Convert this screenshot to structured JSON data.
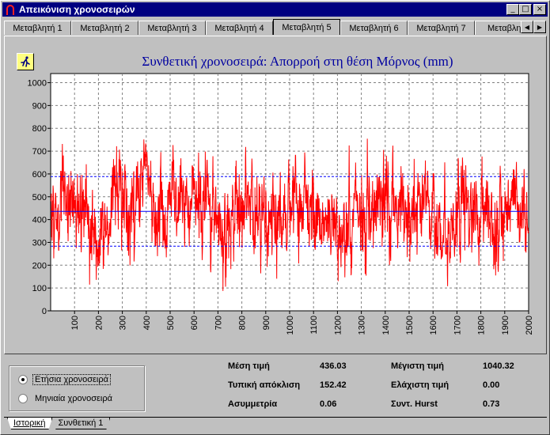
{
  "window": {
    "title": "Απεικόνιση χρονοσειρών",
    "buttons": {
      "minimize": "_",
      "maximize": "□",
      "close": "×"
    }
  },
  "tabs": [
    {
      "label": "Μεταβλητή 1",
      "active": false
    },
    {
      "label": "Μεταβλητή 2",
      "active": false
    },
    {
      "label": "Μεταβλητή 3",
      "active": false
    },
    {
      "label": "Μεταβλητή 4",
      "active": false
    },
    {
      "label": "Μεταβλητή 5",
      "active": true
    },
    {
      "label": "Μεταβλητή 6",
      "active": false
    },
    {
      "label": "Μεταβλητή 7",
      "active": false
    },
    {
      "label": "Μεταβλητή",
      "active": false
    }
  ],
  "tab_scroll": {
    "left": "◀",
    "right": "▶"
  },
  "chart_data": {
    "type": "line",
    "title": "Συνθετική χρονοσειρά: Απορροή στη θέση Μόρνος (mm)",
    "xlabel": "",
    "ylabel": "",
    "xlim": [
      0,
      2000
    ],
    "ylim": [
      0,
      1040
    ],
    "x_ticks": [
      "100",
      "200",
      "300",
      "400",
      "500",
      "600",
      "700",
      "800",
      "900",
      "1000",
      "1100",
      "1200",
      "1300",
      "1400",
      "1500",
      "1600",
      "1700",
      "1800",
      "1900",
      "2000"
    ],
    "y_ticks": [
      "0",
      "100",
      "200",
      "300",
      "400",
      "500",
      "600",
      "700",
      "800",
      "900",
      "1000"
    ],
    "grid": true,
    "series": [
      {
        "color": "#ff0000",
        "points": 2000,
        "mean": 436.03,
        "std": 152.42,
        "min": 0.0,
        "max": 1040.32
      }
    ],
    "reference_lines": [
      {
        "value": 436.03,
        "color": "#0000ff",
        "style": "solid"
      },
      {
        "value": 588.45,
        "color": "#0000ff",
        "style": "dashed"
      },
      {
        "value": 283.61,
        "color": "#0000ff",
        "style": "dashed"
      }
    ],
    "colors": {
      "plot_bg": "#ffffff",
      "series": "#ff0000",
      "title": "#0000a0",
      "ref": "#0000ff"
    }
  },
  "options": {
    "annual": "Ετήσια χρονοσειρά",
    "monthly": "Μηνιαία χρονοσειρά",
    "selected": "annual"
  },
  "stats": {
    "mean_label": "Μέση τιμή",
    "mean_value": "436.03",
    "std_label": "Τυπική απόκλιση",
    "std_value": "152.42",
    "skew_label": "Ασυμμετρία",
    "skew_value": "0.06",
    "max_label": "Μέγιστη τιμή",
    "max_value": "1040.32",
    "min_label": "Ελάχιστη τιμή",
    "min_value": "0.00",
    "hurst_label": "Συντ. Hurst",
    "hurst_value": "0.73"
  },
  "sheet_tabs": [
    {
      "label": "Ιστορική",
      "active": true
    },
    {
      "label": "Συνθετική 1",
      "active": false
    }
  ],
  "icons": {
    "app": "omega-icon",
    "run": "running-man-icon"
  }
}
